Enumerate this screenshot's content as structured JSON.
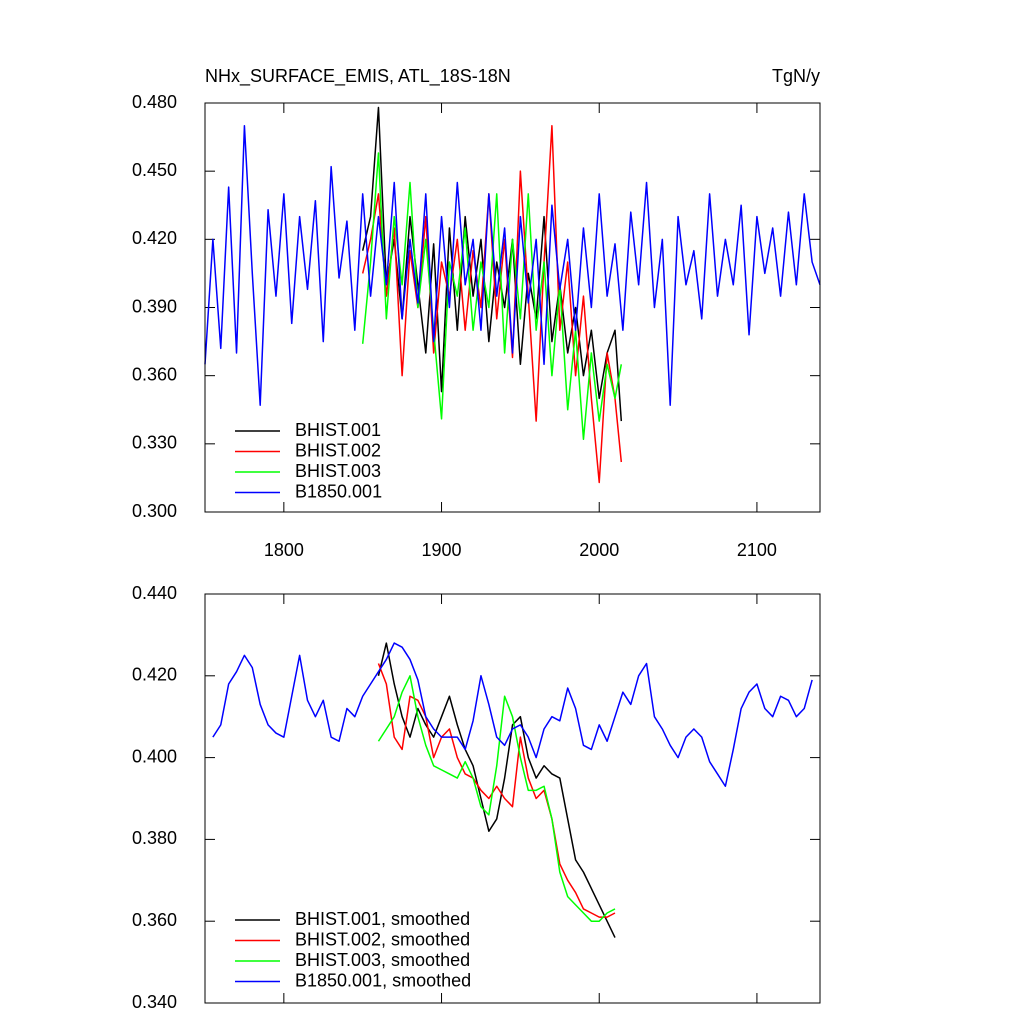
{
  "chart_data": [
    {
      "type": "line",
      "title": "NHx_SURFACE_EMIS, ATL_18S-18N",
      "units": "TgN/y",
      "xlim": [
        1750,
        2140
      ],
      "xticks": [
        1800,
        1900,
        2000,
        2100
      ],
      "show_xtick_labels": true,
      "ylim": [
        0.3,
        0.48
      ],
      "yticks": [
        {
          "value": 0.3,
          "label": "0.300"
        },
        {
          "value": 0.33,
          "label": "0.330"
        },
        {
          "value": 0.36,
          "label": "0.360"
        },
        {
          "value": 0.39,
          "label": "0.390"
        },
        {
          "value": 0.42,
          "label": "0.420"
        },
        {
          "value": 0.45,
          "label": "0.450"
        },
        {
          "value": 0.48,
          "label": "0.480"
        }
      ],
      "series": [
        {
          "name": "BHIST.001",
          "color": "#000000",
          "x": [
            1850,
            1855,
            1860,
            1865,
            1870,
            1875,
            1880,
            1885,
            1890,
            1895,
            1900,
            1905,
            1910,
            1915,
            1920,
            1925,
            1930,
            1935,
            1940,
            1945,
            1950,
            1955,
            1960,
            1965,
            1970,
            1975,
            1980,
            1985,
            1990,
            1995,
            2000,
            2005,
            2010,
            2014
          ],
          "values": [
            0.415,
            0.43,
            0.478,
            0.4,
            0.42,
            0.385,
            0.43,
            0.4,
            0.37,
            0.418,
            0.353,
            0.425,
            0.38,
            0.43,
            0.395,
            0.42,
            0.375,
            0.41,
            0.39,
            0.42,
            0.365,
            0.405,
            0.385,
            0.43,
            0.375,
            0.4,
            0.37,
            0.39,
            0.36,
            0.38,
            0.35,
            0.37,
            0.38,
            0.34
          ]
        },
        {
          "name": "BHIST.002",
          "color": "#ff0000",
          "x": [
            1850,
            1855,
            1860,
            1865,
            1870,
            1875,
            1880,
            1885,
            1890,
            1895,
            1900,
            1905,
            1910,
            1915,
            1920,
            1925,
            1930,
            1935,
            1940,
            1945,
            1950,
            1955,
            1960,
            1965,
            1970,
            1975,
            1980,
            1985,
            1990,
            1995,
            2000,
            2005,
            2010,
            2014
          ],
          "values": [
            0.405,
            0.42,
            0.44,
            0.395,
            0.425,
            0.36,
            0.415,
            0.39,
            0.43,
            0.37,
            0.41,
            0.395,
            0.42,
            0.38,
            0.415,
            0.39,
            0.44,
            0.385,
            0.42,
            0.368,
            0.45,
            0.395,
            0.34,
            0.41,
            0.47,
            0.38,
            0.41,
            0.36,
            0.395,
            0.35,
            0.313,
            0.37,
            0.35,
            0.322
          ]
        },
        {
          "name": "BHIST.003",
          "color": "#00ff00",
          "x": [
            1850,
            1855,
            1860,
            1865,
            1870,
            1875,
            1880,
            1885,
            1890,
            1895,
            1900,
            1905,
            1910,
            1915,
            1920,
            1925,
            1930,
            1935,
            1940,
            1945,
            1950,
            1955,
            1960,
            1965,
            1970,
            1975,
            1980,
            1985,
            1990,
            1995,
            2000,
            2005,
            2010,
            2014
          ],
          "values": [
            0.374,
            0.41,
            0.458,
            0.385,
            0.43,
            0.4,
            0.445,
            0.39,
            0.42,
            0.38,
            0.341,
            0.41,
            0.395,
            0.425,
            0.38,
            0.41,
            0.39,
            0.44,
            0.37,
            0.42,
            0.385,
            0.44,
            0.38,
            0.41,
            0.36,
            0.4,
            0.345,
            0.38,
            0.332,
            0.37,
            0.34,
            0.365,
            0.35,
            0.365
          ]
        },
        {
          "name": "B1850.001",
          "color": "#0000ff",
          "x": [
            1750,
            1755,
            1760,
            1765,
            1770,
            1775,
            1780,
            1785,
            1790,
            1795,
            1800,
            1805,
            1810,
            1815,
            1820,
            1825,
            1830,
            1835,
            1840,
            1845,
            1850,
            1855,
            1860,
            1865,
            1870,
            1875,
            1880,
            1885,
            1890,
            1895,
            1900,
            1905,
            1910,
            1915,
            1920,
            1925,
            1930,
            1935,
            1940,
            1945,
            1950,
            1955,
            1960,
            1965,
            1970,
            1975,
            1980,
            1985,
            1990,
            1995,
            2000,
            2005,
            2010,
            2015,
            2020,
            2025,
            2030,
            2035,
            2040,
            2045,
            2050,
            2055,
            2060,
            2065,
            2070,
            2075,
            2080,
            2085,
            2090,
            2095,
            2100,
            2105,
            2110,
            2115,
            2120,
            2125,
            2130,
            2135,
            2140
          ],
          "values": [
            0.365,
            0.42,
            0.372,
            0.443,
            0.37,
            0.47,
            0.405,
            0.347,
            0.433,
            0.395,
            0.44,
            0.383,
            0.43,
            0.398,
            0.437,
            0.375,
            0.452,
            0.403,
            0.428,
            0.38,
            0.44,
            0.395,
            0.43,
            0.4,
            0.445,
            0.385,
            0.42,
            0.392,
            0.44,
            0.375,
            0.43,
            0.39,
            0.445,
            0.4,
            0.42,
            0.38,
            0.44,
            0.395,
            0.425,
            0.37,
            0.43,
            0.392,
            0.42,
            0.365,
            0.435,
            0.398,
            0.42,
            0.38,
            0.425,
            0.39,
            0.44,
            0.395,
            0.418,
            0.38,
            0.432,
            0.4,
            0.445,
            0.39,
            0.42,
            0.347,
            0.43,
            0.4,
            0.415,
            0.385,
            0.44,
            0.395,
            0.42,
            0.4,
            0.435,
            0.378,
            0.43,
            0.405,
            0.425,
            0.395,
            0.432,
            0.4,
            0.44,
            0.41,
            0.4
          ]
        }
      ]
    },
    {
      "type": "line",
      "xlim": [
        1750,
        2140
      ],
      "xticks": [
        1800,
        1900,
        2000,
        2100
      ],
      "show_xtick_labels": false,
      "ylim": [
        0.34,
        0.44
      ],
      "yticks": [
        {
          "value": 0.34,
          "label": "0.340"
        },
        {
          "value": 0.36,
          "label": "0.360"
        },
        {
          "value": 0.38,
          "label": "0.380"
        },
        {
          "value": 0.4,
          "label": "0.400"
        },
        {
          "value": 0.42,
          "label": "0.420"
        },
        {
          "value": 0.44,
          "label": "0.440"
        }
      ],
      "series": [
        {
          "name": "BHIST.001, smoothed",
          "color": "#000000",
          "x": [
            1860,
            1865,
            1870,
            1875,
            1880,
            1885,
            1890,
            1895,
            1900,
            1905,
            1910,
            1915,
            1920,
            1925,
            1930,
            1935,
            1940,
            1945,
            1950,
            1955,
            1960,
            1965,
            1970,
            1975,
            1980,
            1985,
            1990,
            1995,
            2000,
            2005,
            2010
          ],
          "values": [
            0.42,
            0.428,
            0.418,
            0.41,
            0.405,
            0.412,
            0.408,
            0.405,
            0.41,
            0.415,
            0.408,
            0.402,
            0.398,
            0.39,
            0.382,
            0.385,
            0.395,
            0.408,
            0.41,
            0.4,
            0.395,
            0.398,
            0.396,
            0.395,
            0.385,
            0.375,
            0.372,
            0.368,
            0.364,
            0.36,
            0.356
          ]
        },
        {
          "name": "BHIST.002, smoothed",
          "color": "#ff0000",
          "x": [
            1860,
            1865,
            1870,
            1875,
            1880,
            1885,
            1890,
            1895,
            1900,
            1905,
            1910,
            1915,
            1920,
            1925,
            1930,
            1935,
            1940,
            1945,
            1950,
            1955,
            1960,
            1965,
            1970,
            1975,
            1980,
            1985,
            1990,
            1995,
            2000,
            2005,
            2010
          ],
          "values": [
            0.423,
            0.418,
            0.405,
            0.402,
            0.415,
            0.414,
            0.41,
            0.4,
            0.405,
            0.407,
            0.4,
            0.396,
            0.395,
            0.392,
            0.39,
            0.393,
            0.39,
            0.388,
            0.405,
            0.395,
            0.39,
            0.392,
            0.385,
            0.374,
            0.37,
            0.367,
            0.363,
            0.362,
            0.361,
            0.361,
            0.362
          ]
        },
        {
          "name": "BHIST.003, smoothed",
          "color": "#00ff00",
          "x": [
            1860,
            1865,
            1870,
            1875,
            1880,
            1885,
            1890,
            1895,
            1900,
            1905,
            1910,
            1915,
            1920,
            1925,
            1930,
            1935,
            1940,
            1945,
            1950,
            1955,
            1960,
            1965,
            1970,
            1975,
            1980,
            1985,
            1990,
            1995,
            2000,
            2005,
            2010
          ],
          "values": [
            0.404,
            0.407,
            0.41,
            0.416,
            0.42,
            0.41,
            0.403,
            0.398,
            0.397,
            0.396,
            0.395,
            0.399,
            0.395,
            0.388,
            0.386,
            0.398,
            0.415,
            0.41,
            0.4,
            0.392,
            0.392,
            0.393,
            0.385,
            0.372,
            0.366,
            0.364,
            0.362,
            0.36,
            0.36,
            0.362,
            0.363
          ]
        },
        {
          "name": "B1850.001, smoothed",
          "color": "#0000ff",
          "x": [
            1755,
            1760,
            1765,
            1770,
            1775,
            1780,
            1785,
            1790,
            1795,
            1800,
            1805,
            1810,
            1815,
            1820,
            1825,
            1830,
            1835,
            1840,
            1845,
            1850,
            1855,
            1860,
            1865,
            1870,
            1875,
            1880,
            1885,
            1890,
            1895,
            1900,
            1905,
            1910,
            1915,
            1920,
            1925,
            1930,
            1935,
            1940,
            1945,
            1950,
            1955,
            1960,
            1965,
            1970,
            1975,
            1980,
            1985,
            1990,
            1995,
            2000,
            2005,
            2010,
            2015,
            2020,
            2025,
            2030,
            2035,
            2040,
            2045,
            2050,
            2055,
            2060,
            2065,
            2070,
            2075,
            2080,
            2085,
            2090,
            2095,
            2100,
            2105,
            2110,
            2115,
            2120,
            2125,
            2130,
            2135
          ],
          "values": [
            0.405,
            0.408,
            0.418,
            0.421,
            0.425,
            0.422,
            0.413,
            0.408,
            0.406,
            0.405,
            0.415,
            0.425,
            0.414,
            0.41,
            0.414,
            0.405,
            0.404,
            0.412,
            0.41,
            0.415,
            0.418,
            0.421,
            0.424,
            0.428,
            0.427,
            0.424,
            0.419,
            0.41,
            0.407,
            0.405,
            0.405,
            0.405,
            0.402,
            0.409,
            0.42,
            0.413,
            0.405,
            0.403,
            0.407,
            0.408,
            0.405,
            0.4,
            0.407,
            0.41,
            0.409,
            0.417,
            0.412,
            0.403,
            0.402,
            0.408,
            0.404,
            0.41,
            0.416,
            0.413,
            0.42,
            0.423,
            0.41,
            0.407,
            0.403,
            0.4,
            0.405,
            0.407,
            0.405,
            0.399,
            0.396,
            0.393,
            0.402,
            0.412,
            0.416,
            0.418,
            0.412,
            0.41,
            0.415,
            0.414,
            0.41,
            0.412,
            0.419
          ]
        }
      ]
    }
  ]
}
